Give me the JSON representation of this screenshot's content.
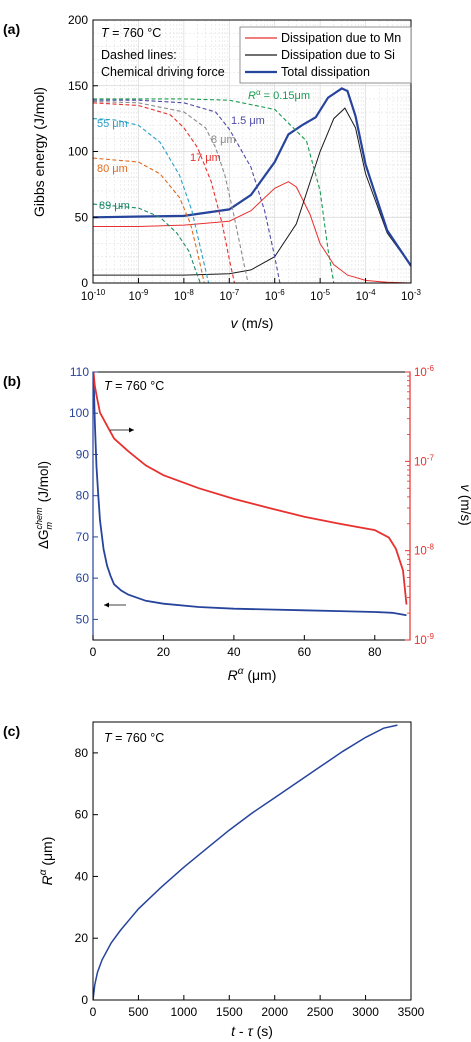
{
  "chart_data": [
    {
      "panel": "(a)",
      "type": "line",
      "annotation_T": "T = 760 °C",
      "note_lines": [
        "Dashed lines:",
        "Chemical driving force"
      ],
      "xlabel": "v (m/s)",
      "ylabel": "Gibbs energy (J/mol)",
      "xscale": "log",
      "xlim": [
        1e-10,
        0.001
      ],
      "ylim": [
        0,
        200
      ],
      "yticks": [
        0,
        50,
        100,
        150,
        200
      ],
      "xtick_exponents": [
        -10,
        -9,
        -8,
        -7,
        -6,
        -5,
        -4,
        -3
      ],
      "xtick_base": "10",
      "grid": true,
      "legend": [
        "Dissipation due to Mn",
        "Dissipation due to Si",
        "Total dissipation"
      ],
      "legend_position": "top-right",
      "series": [
        {
          "name": "Dissipation due to Mn",
          "color": "#e8312f",
          "dash": false,
          "x": [
            1e-10,
            1e-09,
            1e-08,
            1e-07,
            3e-07,
            1e-06,
            2e-06,
            3e-06,
            6e-06,
            1e-05,
            2e-05,
            4e-05,
            0.0001,
            0.0003,
            0.001
          ],
          "y": [
            43,
            43,
            44,
            47,
            55,
            72,
            77,
            73,
            52,
            30,
            14,
            6,
            2,
            0.5,
            0
          ]
        },
        {
          "name": "Dissipation due to Si",
          "color": "#1a1a1a",
          "dash": false,
          "x": [
            1e-10,
            1e-08,
            1e-07,
            3e-07,
            1e-06,
            3e-06,
            1e-05,
            2e-05,
            3.5e-05,
            6e-05,
            0.0001,
            0.0003,
            0.001
          ],
          "y": [
            6,
            6,
            7,
            10,
            20,
            45,
            100,
            125,
            133,
            118,
            83,
            38,
            13
          ]
        },
        {
          "name": "Total dissipation",
          "color": "#27449c",
          "dash": false,
          "x": [
            1e-10,
            1e-08,
            1e-07,
            3e-07,
            1e-06,
            2e-06,
            4e-06,
            8e-06,
            1.5e-05,
            3e-05,
            4e-05,
            6e-05,
            0.0001,
            0.0003,
            0.001
          ],
          "y": [
            50,
            51,
            56,
            67,
            92,
            113,
            120,
            126,
            141,
            148,
            146,
            127,
            90,
            40,
            13
          ]
        },
        {
          "label": "R^α = 0.15μm",
          "color": "#1a9b52",
          "dash": true,
          "x": [
            1e-10,
            1e-08,
            1e-07,
            1e-06,
            5e-06,
            1e-05,
            1.5e-05,
            2e-05
          ],
          "y": [
            140,
            140,
            139,
            132,
            108,
            70,
            25,
            0
          ]
        },
        {
          "label": "1.5 μm",
          "color": "#4d4ba6",
          "dash": true,
          "x": [
            1e-10,
            1e-09,
            1e-08,
            5e-08,
            1e-07,
            3e-07,
            6e-07,
            1e-06,
            1.3e-06
          ],
          "y": [
            139,
            139,
            137,
            130,
            117,
            88,
            55,
            20,
            0
          ]
        },
        {
          "label": "8 μm",
          "color": "#8a8a8a",
          "dash": true,
          "x": [
            1e-10,
            1e-09,
            1e-08,
            3e-08,
            5e-08,
            8e-08,
            1.2e-07,
            2e-07,
            2.6e-07
          ],
          "y": [
            138,
            137,
            130,
            118,
            103,
            82,
            55,
            18,
            0
          ]
        },
        {
          "label": "17 μm",
          "color": "#e8312f",
          "dash": true,
          "x": [
            1e-10,
            1e-09,
            5e-09,
            1e-08,
            2e-08,
            4e-08,
            7e-08,
            1e-07,
            1.3e-07
          ],
          "y": [
            137,
            135,
            128,
            118,
            103,
            77,
            45,
            18,
            0
          ]
        },
        {
          "label": "55 μm",
          "color": "#2ba0c7",
          "dash": true,
          "x": [
            1e-10,
            3e-10,
            1e-09,
            3e-09,
            8e-09,
            1.5e-08,
            2.5e-08,
            3.5e-08
          ],
          "y": [
            125,
            124,
            120,
            107,
            82,
            55,
            22,
            0
          ]
        },
        {
          "label": "80 μm",
          "color": "#e06b1f",
          "dash": true,
          "x": [
            1e-10,
            1e-09,
            3e-09,
            8e-09,
            1.4e-08,
            2.1e-08,
            2.8e-08
          ],
          "y": [
            95,
            92,
            83,
            65,
            45,
            20,
            0
          ]
        },
        {
          "label": "89 μm",
          "color": "#1e8a6a",
          "dash": true,
          "x": [
            1e-10,
            1e-09,
            3e-09,
            7e-09,
            1.3e-08,
            1.8e-08,
            2.3e-08
          ],
          "y": [
            60,
            57,
            50,
            38,
            24,
            10,
            0
          ]
        }
      ]
    },
    {
      "panel": "(b)",
      "type": "line",
      "annotation_T": "T = 760 °C",
      "xlabel": "R^α (μm)",
      "ylabel_left": "ΔG_m^chem (J/mol)",
      "ylabel_right": "v (m/s)",
      "xlim": [
        0,
        90
      ],
      "xticks": [
        0,
        20,
        40,
        60,
        80
      ],
      "ylim_left": [
        45,
        110
      ],
      "yticks_left": [
        50,
        60,
        70,
        80,
        90,
        100,
        110
      ],
      "ylim_right": [
        1e-09,
        1e-06
      ],
      "yscale_right": "log",
      "ytick_exponents_right": [
        -9,
        -8,
        -7,
        -6
      ],
      "ytick_base_right": "10",
      "grid": false,
      "series": [
        {
          "axis": "left",
          "color": "#27449c",
          "x": [
            0.15,
            0.5,
            1,
            1.5,
            2,
            3,
            4,
            5,
            6,
            8,
            10,
            15,
            20,
            30,
            40,
            50,
            60,
            70,
            80,
            85,
            89
          ],
          "y": [
            110,
            98,
            87,
            80,
            74,
            67,
            63,
            60.5,
            58.5,
            57,
            56,
            54.5,
            53.8,
            53,
            52.6,
            52.4,
            52.2,
            52,
            51.8,
            51.6,
            51
          ]
        },
        {
          "axis": "right",
          "color": "#e8312f",
          "x": [
            0.15,
            0.5,
            1,
            2,
            4,
            6,
            10,
            15,
            20,
            30,
            40,
            50,
            60,
            70,
            80,
            84,
            86,
            88,
            89
          ],
          "y": [
            1e-06,
            7e-07,
            5.5e-07,
            3.5e-07,
            2.5e-07,
            1.8e-07,
            1.3e-07,
            9e-08,
            7e-08,
            5e-08,
            3.8e-08,
            3e-08,
            2.4e-08,
            2e-08,
            1.7e-08,
            1.4e-08,
            1.05e-08,
            6e-09,
            2.5e-09
          ]
        }
      ]
    },
    {
      "panel": "(c)",
      "type": "line",
      "annotation_T": "T = 760 °C",
      "xlabel": "t - τ (s)",
      "ylabel": "R^α (μm)",
      "xlim": [
        0,
        3500
      ],
      "xticks": [
        0,
        500,
        1000,
        1500,
        2000,
        2500,
        3000,
        3500
      ],
      "ylim": [
        0,
        90
      ],
      "yticks": [
        0,
        20,
        40,
        60,
        80
      ],
      "grid": false,
      "series": [
        {
          "color": "#27449c",
          "x": [
            0,
            20,
            50,
            100,
            200,
            300,
            500,
            750,
            1000,
            1250,
            1500,
            1750,
            2000,
            2250,
            2500,
            2750,
            3000,
            3200,
            3350
          ],
          "y": [
            0,
            5,
            9,
            13,
            18.5,
            22.5,
            29.5,
            36.5,
            43,
            49,
            55,
            60.5,
            65.5,
            70.5,
            75.5,
            80.5,
            85,
            88,
            89
          ]
        }
      ]
    }
  ]
}
